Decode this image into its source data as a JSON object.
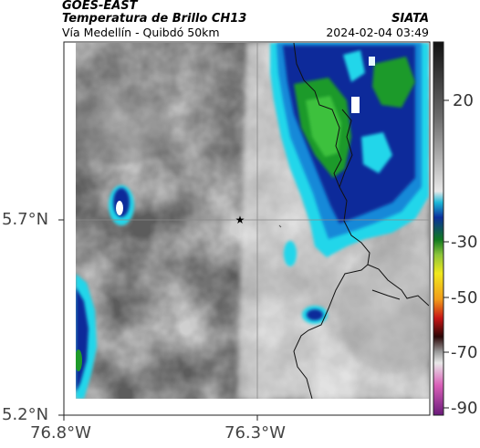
{
  "header": {
    "satellite": "GOES-EAST",
    "product": "Temperatura de Brillo CH13",
    "region": "Vía Medellín - Quibdó 50km",
    "source": "SIATA",
    "datetime": "2024-02-04 03:49"
  },
  "axes": {
    "lat_ticks": [
      "5.7°N",
      "5.2°N"
    ],
    "lon_ticks": [
      "76.8°W",
      "76.3°W"
    ]
  },
  "colorbar": {
    "ticks": [
      "20",
      "-30",
      "-50",
      "-70",
      "-90"
    ]
  },
  "colors": {
    "cold_cloud_blue": "#0a2a9a",
    "cyan": "#21d6ea",
    "green": "#1e9a2a",
    "warm_gray": "#c8c8c8"
  },
  "map": {
    "marker_icon": "star-icon"
  }
}
